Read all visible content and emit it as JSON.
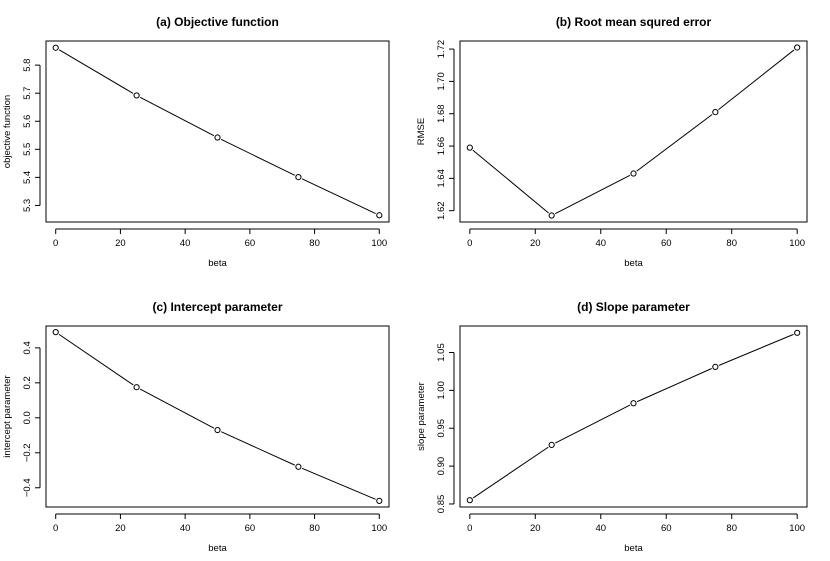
{
  "chart_data": [
    {
      "type": "line",
      "title": "(a) Objective function",
      "xlabel": "beta",
      "ylabel": "objective function",
      "x": [
        0,
        25,
        50,
        75,
        100
      ],
      "series": [
        {
          "values": [
            5.862,
            5.692,
            5.542,
            5.401,
            5.265
          ]
        }
      ],
      "xlim": [
        -3,
        103
      ],
      "ylim": [
        5.241,
        5.886
      ],
      "xticks": [
        0,
        20,
        40,
        60,
        80,
        100
      ],
      "yticks": [
        5.3,
        5.4,
        5.5,
        5.6,
        5.7,
        5.8
      ],
      "ytick_labels": [
        "5.3",
        "5.4",
        "5.5",
        "5.6",
        "5.7",
        "5.8"
      ],
      "grid": false
    },
    {
      "type": "line",
      "title": "(b) Root mean squred error",
      "xlabel": "beta",
      "ylabel": "RMSE",
      "x": [
        0,
        25,
        50,
        75,
        100
      ],
      "series": [
        {
          "values": [
            1.659,
            1.617,
            1.643,
            1.681,
            1.721
          ]
        }
      ],
      "xlim": [
        -3,
        103
      ],
      "ylim": [
        1.613,
        1.725
      ],
      "xticks": [
        0,
        20,
        40,
        60,
        80,
        100
      ],
      "yticks": [
        1.62,
        1.64,
        1.66,
        1.68,
        1.7,
        1.72
      ],
      "ytick_labels": [
        "1.62",
        "1.64",
        "1.66",
        "1.68",
        "1.70",
        "1.72"
      ],
      "grid": false
    },
    {
      "type": "line",
      "title": "(c) Intercept parameter",
      "xlabel": "beta",
      "ylabel": "intercept parameter",
      "x": [
        0,
        25,
        50,
        75,
        100
      ],
      "series": [
        {
          "values": [
            0.49,
            0.175,
            -0.07,
            -0.28,
            -0.475
          ]
        }
      ],
      "xlim": [
        -3,
        103
      ],
      "ylim": [
        -0.51,
        0.525
      ],
      "xticks": [
        0,
        20,
        40,
        60,
        80,
        100
      ],
      "yticks": [
        -0.4,
        -0.2,
        0.0,
        0.2,
        0.4
      ],
      "ytick_labels": [
        "−0.4",
        "−0.2",
        "0.0",
        "0.2",
        "0.4"
      ],
      "grid": false
    },
    {
      "type": "line",
      "title": "(d) Slope parameter",
      "xlabel": "beta",
      "ylabel": "slope parameter",
      "x": [
        0,
        25,
        50,
        75,
        100
      ],
      "series": [
        {
          "values": [
            0.855,
            0.928,
            0.983,
            1.031,
            1.076
          ]
        }
      ],
      "xlim": [
        -3,
        103
      ],
      "ylim": [
        0.846,
        1.085
      ],
      "xticks": [
        0,
        20,
        40,
        60,
        80,
        100
      ],
      "yticks": [
        0.85,
        0.9,
        0.95,
        1.0,
        1.05
      ],
      "ytick_labels": [
        "0.85",
        "0.90",
        "0.95",
        "1.00",
        "1.05"
      ],
      "grid": false
    }
  ]
}
